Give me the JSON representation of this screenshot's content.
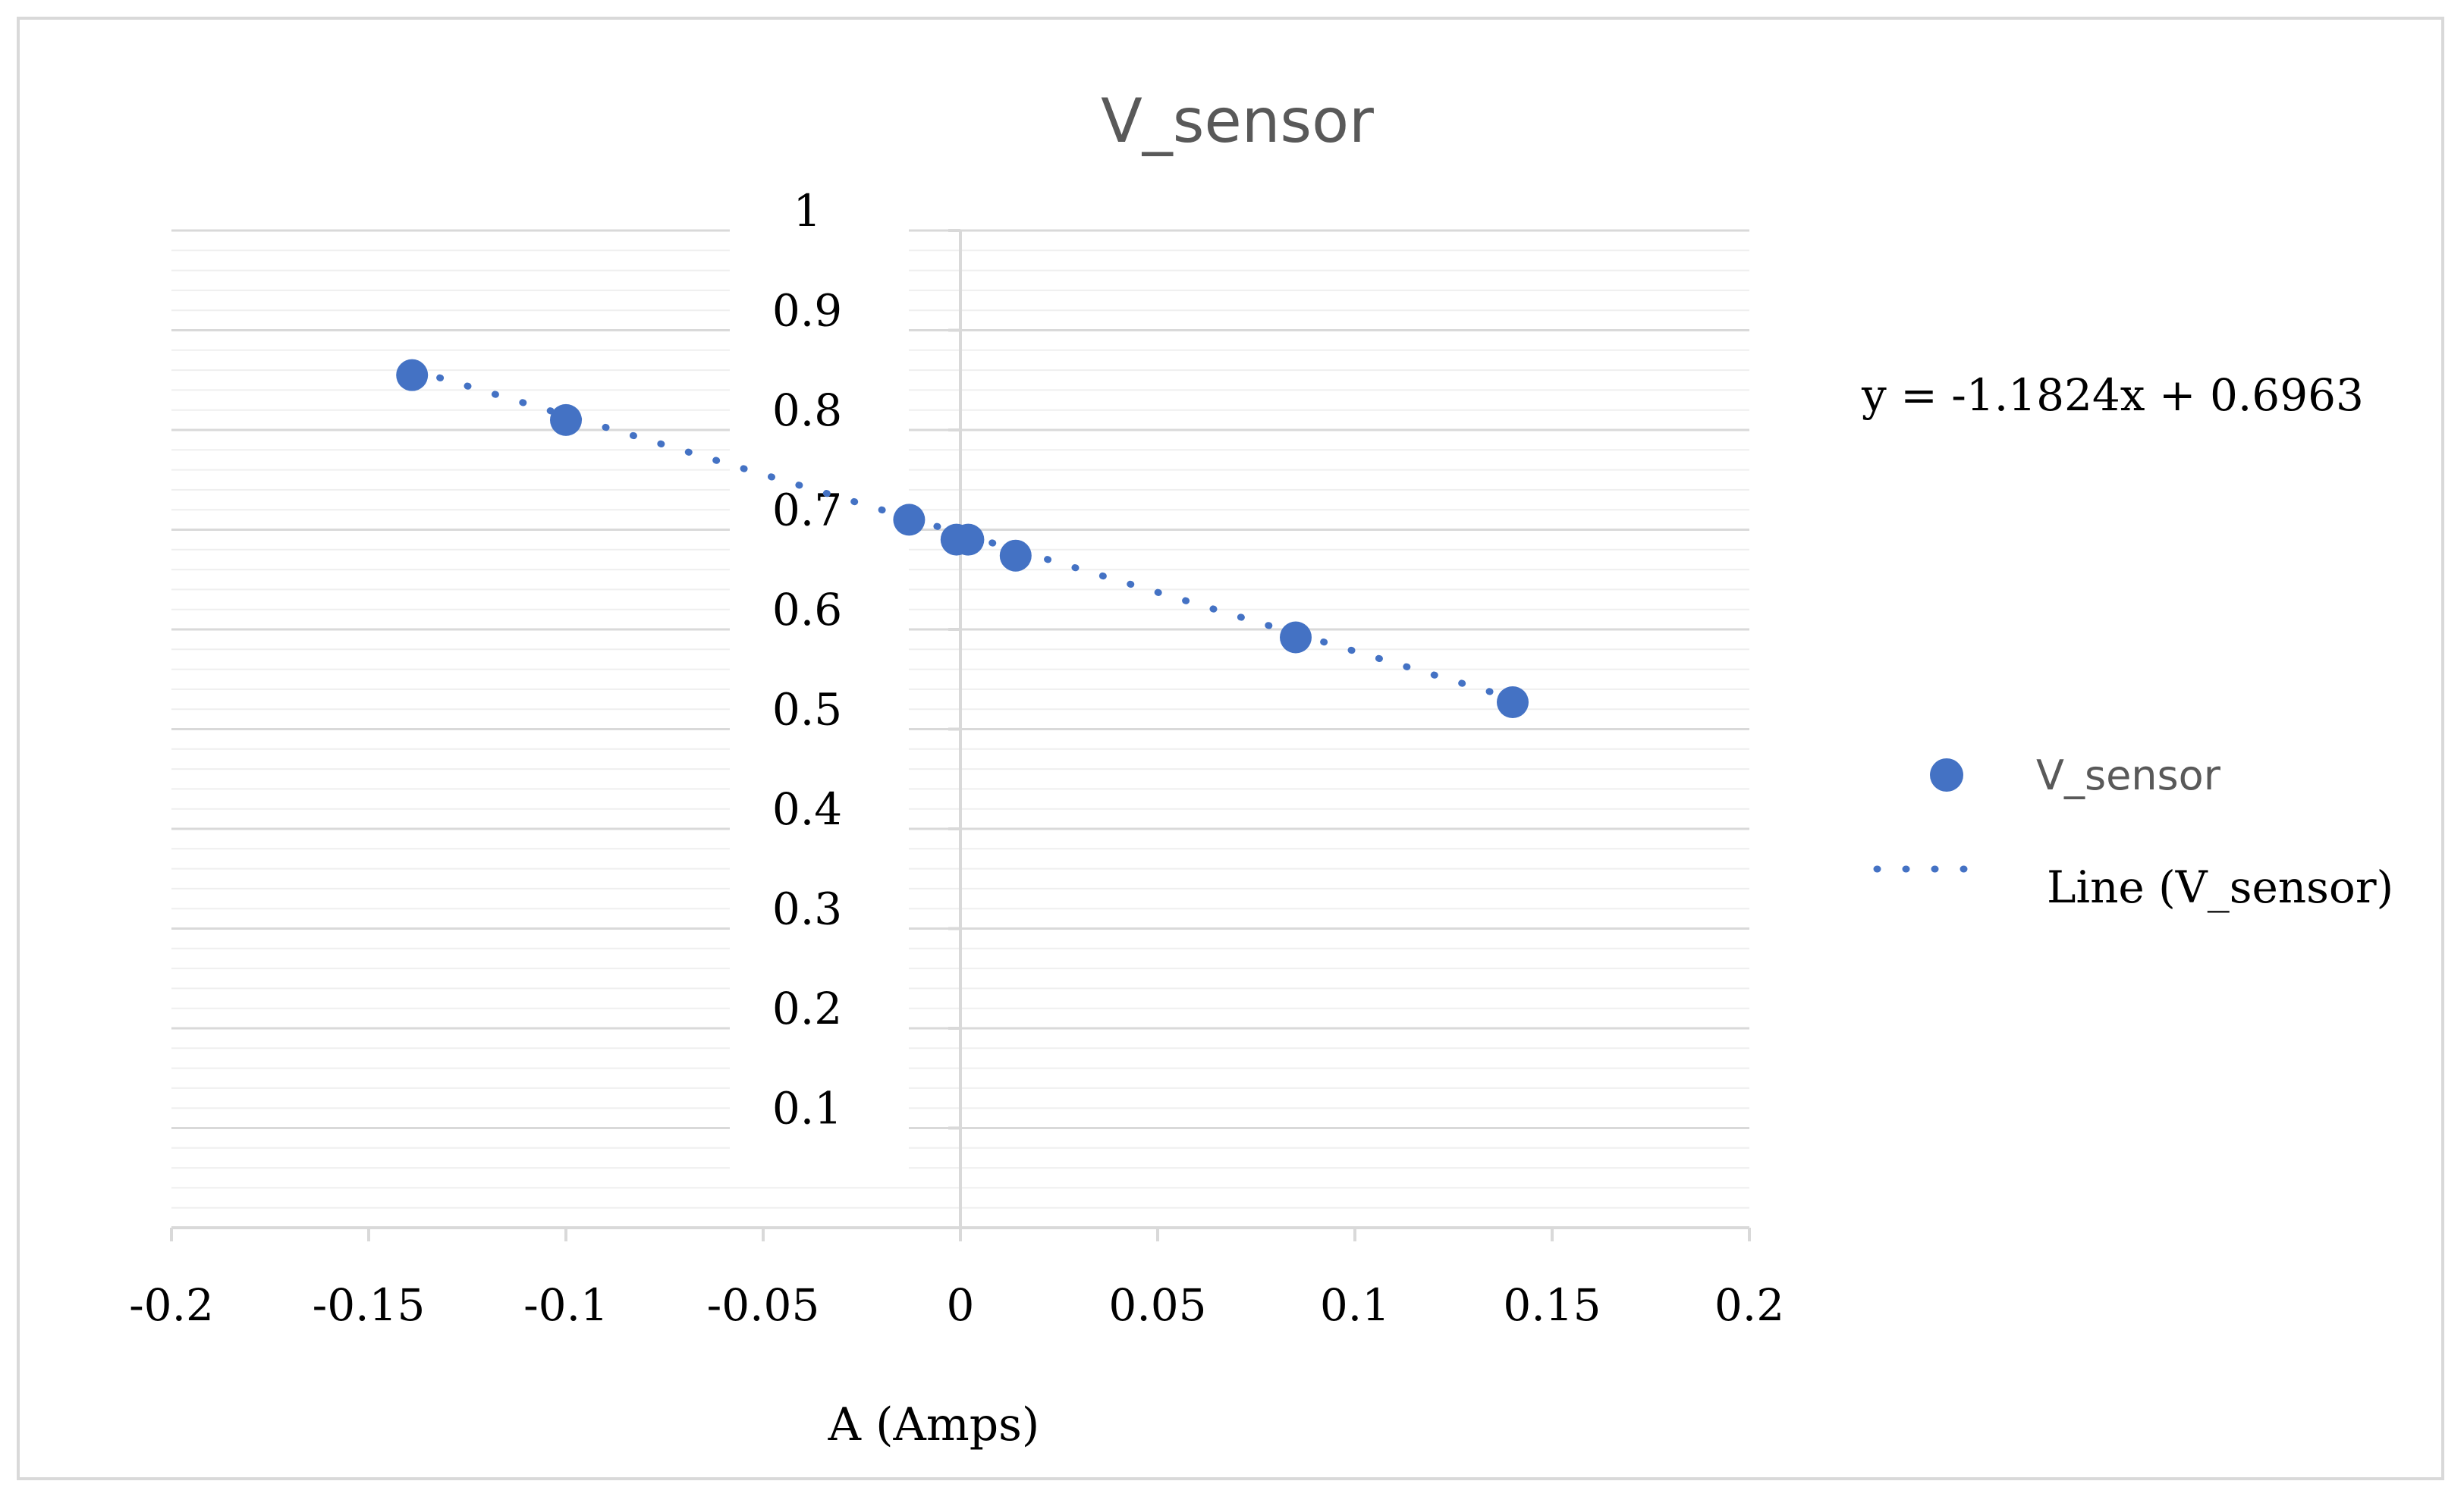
{
  "chart_data": {
    "type": "scatter",
    "title": "V_sensor",
    "xlabel": "A (Amps)",
    "ylabel": "",
    "xlim": [
      -0.2,
      0.2
    ],
    "ylim": [
      0,
      1
    ],
    "x_ticks": [
      "-0.2",
      "-0.15",
      "-0.1",
      "-0.05",
      "0",
      "0.05",
      "0.1",
      "0.15",
      "0.2"
    ],
    "y_ticks": [
      "0.1",
      "0.2",
      "0.3",
      "0.4",
      "0.5",
      "0.6",
      "0.7",
      "0.8",
      "0.9",
      "1"
    ],
    "grid": true,
    "minor_grid": true,
    "series": [
      {
        "name": "V_sensor",
        "color": "#4472C4",
        "x": [
          -0.139,
          -0.1,
          -0.013,
          -0.001,
          0.002,
          0.014,
          0.085,
          0.14
        ],
        "y": [
          0.855,
          0.81,
          0.71,
          0.69,
          0.69,
          0.674,
          0.592,
          0.527
        ]
      }
    ],
    "trendline": {
      "name": "Line (V_sensor)",
      "type": "linear",
      "slope": -1.1824,
      "intercept": 0.6963,
      "x_range": [
        -0.139,
        0.14
      ],
      "color": "#4472C4",
      "style": "dotted"
    },
    "equation_label": "y = -1.1824x + 0.6963",
    "legend": {
      "placement": "right",
      "entries": [
        "V_sensor",
        "Line (V_sensor)"
      ]
    }
  }
}
